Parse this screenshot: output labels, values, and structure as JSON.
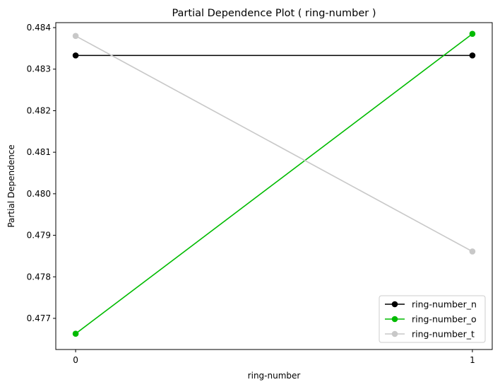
{
  "chart_data": {
    "type": "line",
    "title": "Partial Dependence Plot ( ring-number )",
    "xlabel": "ring-number",
    "ylabel": "Partial Dependence",
    "x": [
      0,
      1
    ],
    "x_ticks": [
      "0",
      "1"
    ],
    "xlim": [
      -0.05,
      1.05
    ],
    "ylim": [
      0.47625,
      0.48412
    ],
    "y_ticks": [
      "0.477",
      "0.478",
      "0.479",
      "0.480",
      "0.481",
      "0.482",
      "0.483",
      "0.484"
    ],
    "grid": false,
    "legend_position": "lower-right",
    "series": [
      {
        "name": "ring-number_n",
        "color": "#000000",
        "values": [
          0.48333,
          0.48333
        ]
      },
      {
        "name": "ring-number_o",
        "color": "#00bb00",
        "values": [
          0.47663,
          0.48385
        ]
      },
      {
        "name": "ring-number_t",
        "color": "#c8c8c8",
        "values": [
          0.4838,
          0.47861
        ]
      }
    ]
  }
}
